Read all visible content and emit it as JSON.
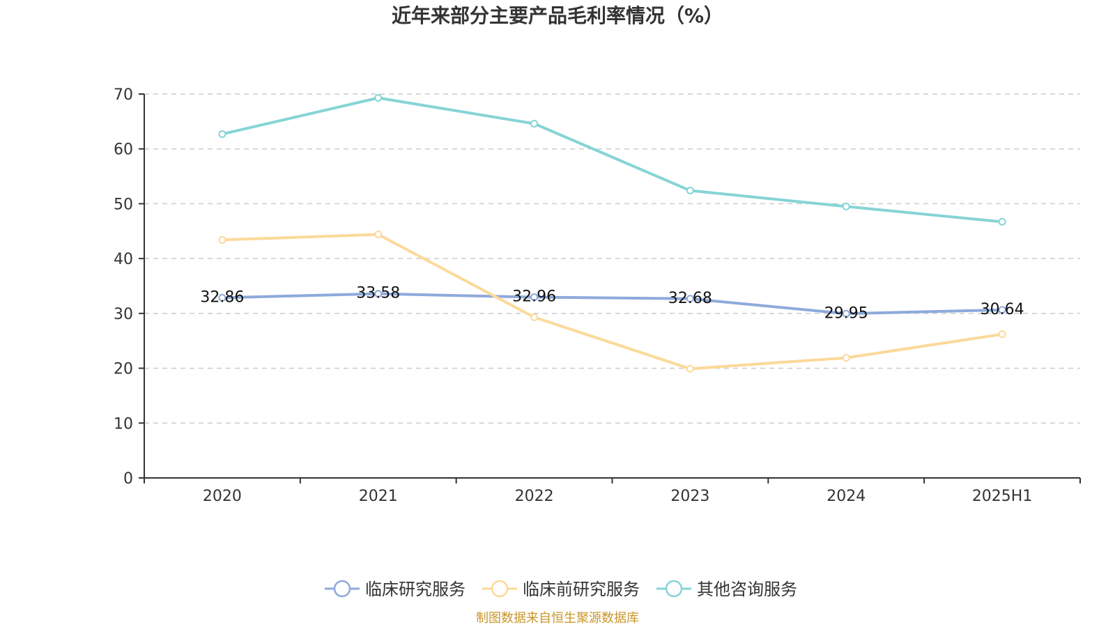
{
  "chart_data": {
    "type": "line",
    "title": "近年来部分主要产品毛利率情况（%）",
    "categories": [
      "2020",
      "2021",
      "2022",
      "2023",
      "2024",
      "2025H1"
    ],
    "ylim": [
      0,
      70
    ],
    "yticks": [
      0,
      10,
      20,
      30,
      40,
      50,
      60,
      70
    ],
    "grid": true,
    "legend_position": "bottom",
    "series": [
      {
        "name": "临床研究服务",
        "color": "#8eaadb",
        "values": [
          32.86,
          33.58,
          32.96,
          32.68,
          29.95,
          30.64
        ],
        "show_labels": true
      },
      {
        "name": "临床前研究服务",
        "color": "#fcd99a",
        "values": [
          43.4,
          44.4,
          29.3,
          19.9,
          21.9,
          26.2
        ],
        "show_labels": false
      },
      {
        "name": "其他咨询服务",
        "color": "#86d4d6",
        "values": [
          62.7,
          69.3,
          64.6,
          52.4,
          49.5,
          46.7
        ],
        "show_labels": false
      }
    ],
    "source": "制图数据来自恒生聚源数据库"
  }
}
